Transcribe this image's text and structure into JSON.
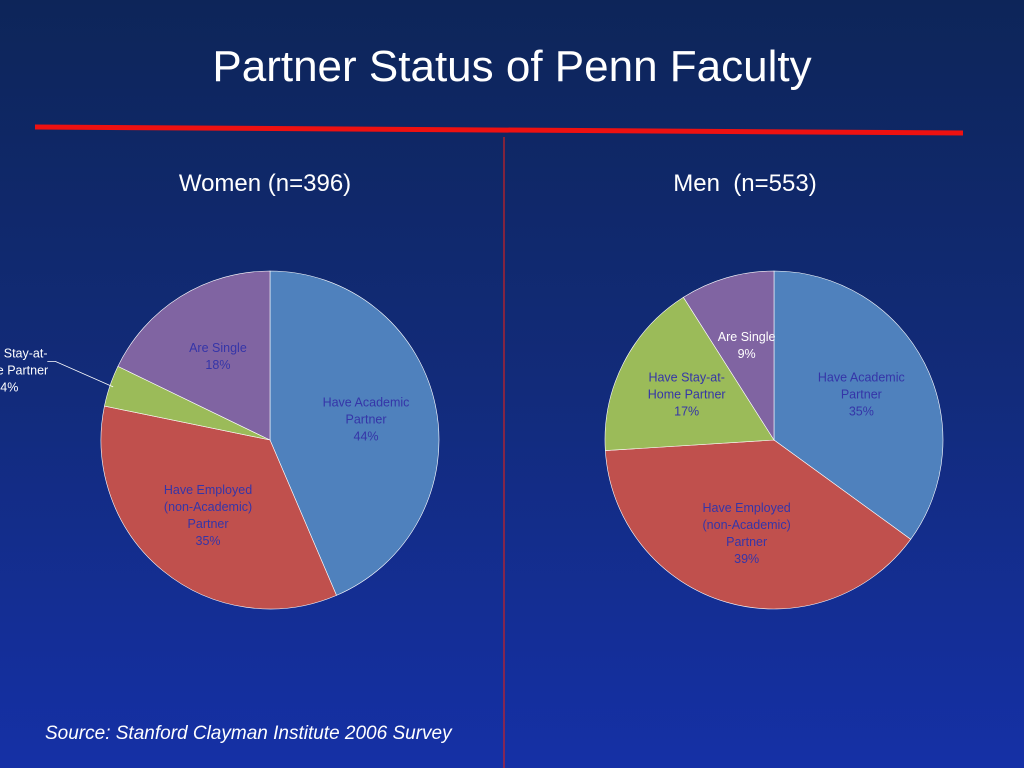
{
  "title": "Partner Status of Penn Faculty",
  "source": "Source: Stanford Clayman Institute 2006 Survey",
  "chart_data": [
    {
      "type": "pie",
      "title": "Women (n=396)",
      "categories": [
        "Have Academic Partner",
        "Have Employed (non-Academic) Partner",
        "Have Stay-at-Home Partner",
        "Are Single"
      ],
      "values": [
        44,
        35,
        4,
        18
      ],
      "value_labels": [
        "44%",
        "35%",
        "4%",
        "18%"
      ],
      "colors": [
        "#4f81bd",
        "#c0504d",
        "#9bbb59",
        "#8064a2"
      ]
    },
    {
      "type": "pie",
      "title": "Men  (n=553)",
      "categories": [
        "Have Academic Partner",
        "Have Employed (non-Academic) Partner",
        "Have Stay-at-Home Partner",
        "Are Single"
      ],
      "values": [
        35,
        39,
        17,
        9
      ],
      "value_labels": [
        "35%",
        "39%",
        "17%",
        "9%"
      ],
      "colors": [
        "#4f81bd",
        "#c0504d",
        "#9bbb59",
        "#8064a2"
      ]
    }
  ]
}
